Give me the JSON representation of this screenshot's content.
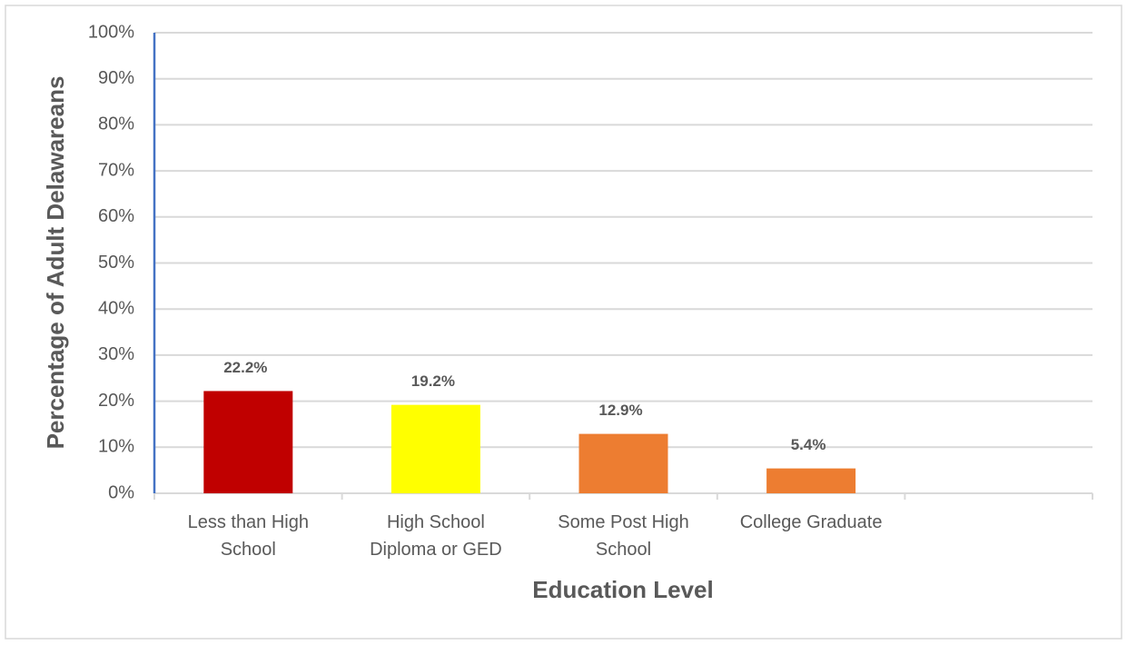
{
  "chart_data": {
    "type": "bar",
    "x_label": "Education Level",
    "y_label": "Percentage of Adult Delawareans",
    "categories": [
      "Less than High School",
      "High School Diploma or GED",
      "Some Post High School",
      "College Graduate",
      null
    ],
    "values": [
      22.2,
      19.2,
      12.9,
      5.4,
      null
    ],
    "value_labels": [
      "22.2%",
      "19.2%",
      "12.9%",
      "5.4%",
      null
    ],
    "colors": [
      "#c00000",
      "#ffff00",
      "#ed7d31",
      "#ed7d31",
      null
    ],
    "ylim": [
      0,
      100
    ],
    "yticks": [
      {
        "value": 0,
        "label": "0%"
      },
      {
        "value": 10,
        "label": "10%"
      },
      {
        "value": 20,
        "label": "20%"
      },
      {
        "value": 30,
        "label": "30%"
      },
      {
        "value": 40,
        "label": "40%"
      },
      {
        "value": 50,
        "label": "50%"
      },
      {
        "value": 60,
        "label": "60%"
      },
      {
        "value": 70,
        "label": "70%"
      },
      {
        "value": 80,
        "label": "80%"
      },
      {
        "value": 90,
        "label": "90%"
      },
      {
        "value": 100,
        "label": "100%"
      }
    ],
    "grid": true
  }
}
